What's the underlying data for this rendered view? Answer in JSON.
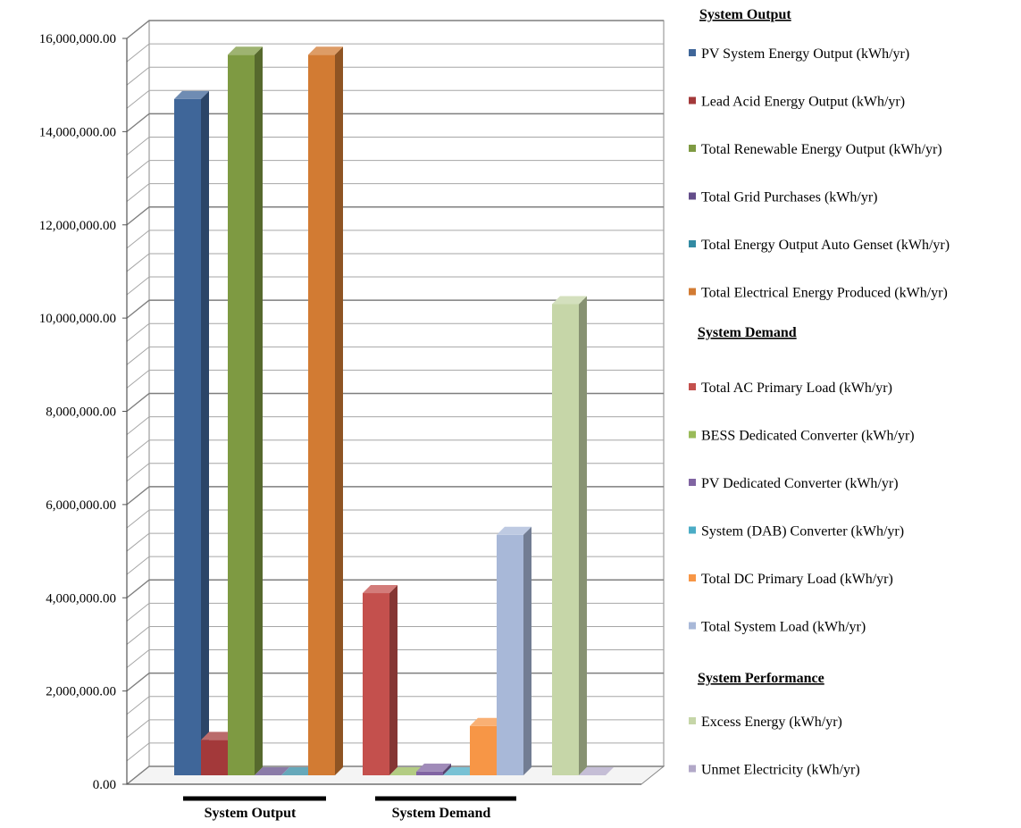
{
  "chart_data": {
    "type": "bar",
    "ylim": [
      0,
      16000000
    ],
    "yticks": [
      0,
      2000000,
      4000000,
      6000000,
      8000000,
      10000000,
      12000000,
      14000000,
      16000000
    ],
    "ytick_labels": [
      "0.00",
      "2,000,000.00",
      "4,000,000.00",
      "6,000,000.00",
      "8,000,000.00",
      "10,000,000.00",
      "12,000,000.00",
      "14,000,000.00",
      "16,000,000.00"
    ],
    "grid": true,
    "legend_position": "right",
    "groups": [
      {
        "label": "System Output",
        "heading": "System Output",
        "series": [
          {
            "name": "PV System Energy Output (kWh/yr)",
            "value": 14700000,
            "color": "#3F6699"
          },
          {
            "name": "Lead Acid Energy Output (kWh/yr)",
            "value": 950000,
            "color": "#A3393A"
          },
          {
            "name": "Total Renewable Energy Output (kWh/yr)",
            "value": 15650000,
            "color": "#7E9A42"
          },
          {
            "name": "Total Grid Purchases (kWh/yr)",
            "value": 0,
            "color": "#634D8A"
          },
          {
            "name": "Total Energy Output Auto Genset (kWh/yr)",
            "value": 0,
            "color": "#338BA3"
          },
          {
            "name": "Total Electrical Energy Produced (kWh/yr)",
            "value": 15650000,
            "color": "#D27B33"
          }
        ]
      },
      {
        "label": "System Demand",
        "heading": "System Demand",
        "series": [
          {
            "name": "Total AC Primary Load (kWh/yr)",
            "value": 4100000,
            "color": "#C4504D"
          },
          {
            "name": "BESS Dedicated Converter (kWh/yr)",
            "value": 0,
            "color": "#9ABB59"
          },
          {
            "name": "PV Dedicated Converter (kWh/yr)",
            "value": 270000,
            "color": "#8064A2"
          },
          {
            "name": "System (DAB) Converter (kWh/yr)",
            "value": 0,
            "color": "#4BACC6"
          },
          {
            "name": "Total DC Primary Load (kWh/yr)",
            "value": 1250000,
            "color": "#F79646"
          },
          {
            "name": "Total System Load (kWh/yr)",
            "value": 5350000,
            "color": "#A8B8D8"
          }
        ]
      },
      {
        "label": "",
        "heading": "System Performance",
        "series": [
          {
            "name": "Excess Energy (kWh/yr)",
            "value": 10300000,
            "color": "#C6D6A8"
          },
          {
            "name": "Unmet Electricity (kWh/yr)",
            "value": 0,
            "color": "#B2A8C8"
          }
        ]
      }
    ]
  }
}
